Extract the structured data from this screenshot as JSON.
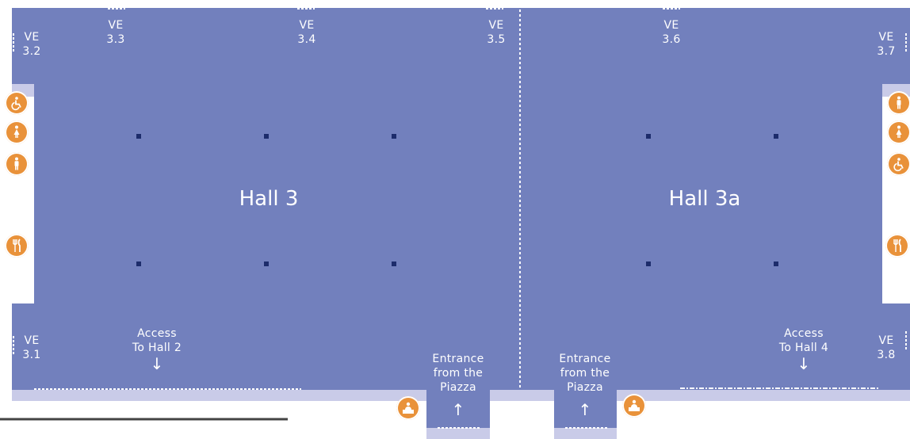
{
  "colors": {
    "hall": "#7280bd",
    "corridor": "#c9cbe8",
    "pillar": "#1d2c6b",
    "icon": "#e9923a"
  },
  "halls": [
    {
      "name": "Hall 3"
    },
    {
      "name": "Hall 3a"
    }
  ],
  "entrances": [
    {
      "id": "ve-3-1",
      "line1": "VE",
      "line2": "3.1"
    },
    {
      "id": "ve-3-2",
      "line1": "VE",
      "line2": "3.2"
    },
    {
      "id": "ve-3-3",
      "line1": "VE",
      "line2": "3.3"
    },
    {
      "id": "ve-3-4",
      "line1": "VE",
      "line2": "3.4"
    },
    {
      "id": "ve-3-5",
      "line1": "VE",
      "line2": "3.5"
    },
    {
      "id": "ve-3-6",
      "line1": "VE",
      "line2": "3.6"
    },
    {
      "id": "ve-3-7",
      "line1": "VE",
      "line2": "3.7"
    },
    {
      "id": "ve-3-8",
      "line1": "VE",
      "line2": "3.8"
    }
  ],
  "access": [
    {
      "line1": "Access",
      "line2": "To Hall 2",
      "arrow": "↓"
    },
    {
      "line1": "Access",
      "line2": "To Hall 4",
      "arrow": "↓"
    }
  ],
  "piazza": [
    {
      "line1": "Entrance",
      "line2": "from the",
      "line3": "Piazza",
      "arrow": "↑"
    },
    {
      "line1": "Entrance",
      "line2": "from the",
      "line3": "Piazza",
      "arrow": "↑"
    }
  ],
  "icons": [
    "wheelchair-icon",
    "female-toilet-icon",
    "male-toilet-icon",
    "restaurant-icon",
    "info-desk-icon"
  ]
}
